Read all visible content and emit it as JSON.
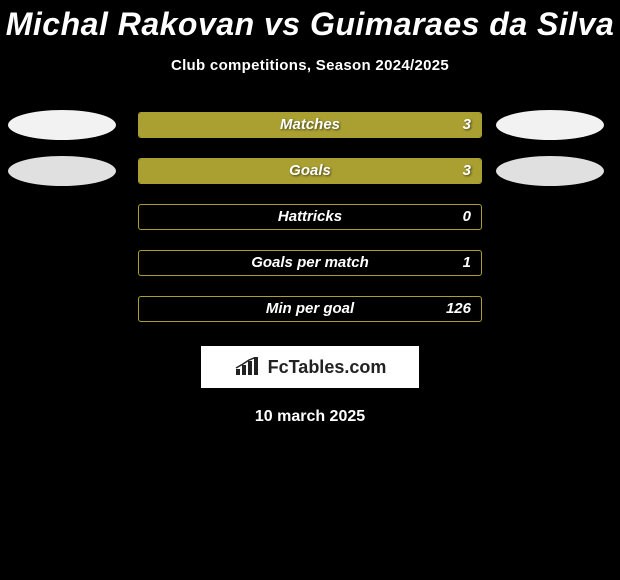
{
  "title": "Michal Rakovan vs Guimaraes da Silva",
  "subtitle": "Club competitions, Season 2024/2025",
  "date": "10 march 2025",
  "badge_text": "FcTables.com",
  "colors": {
    "bar_fill": "#aaa032",
    "bar_border": "#aaa032",
    "ellipse_1": "#f2f2f2",
    "ellipse_2": "#e0e0e0",
    "badge_bg": "#ffffff",
    "badge_text": "#222222"
  },
  "rows": [
    {
      "label": "Matches",
      "value": "3",
      "fill_pct": 100,
      "left_ellipse": "#f2f2f2",
      "right_ellipse": "#f2f2f2"
    },
    {
      "label": "Goals",
      "value": "3",
      "fill_pct": 100,
      "left_ellipse": "#e0e0e0",
      "right_ellipse": "#e0e0e0"
    },
    {
      "label": "Hattricks",
      "value": "0",
      "fill_pct": 0
    },
    {
      "label": "Goals per match",
      "value": "1",
      "fill_pct": 0
    },
    {
      "label": "Min per goal",
      "value": "126",
      "fill_pct": 0
    }
  ]
}
